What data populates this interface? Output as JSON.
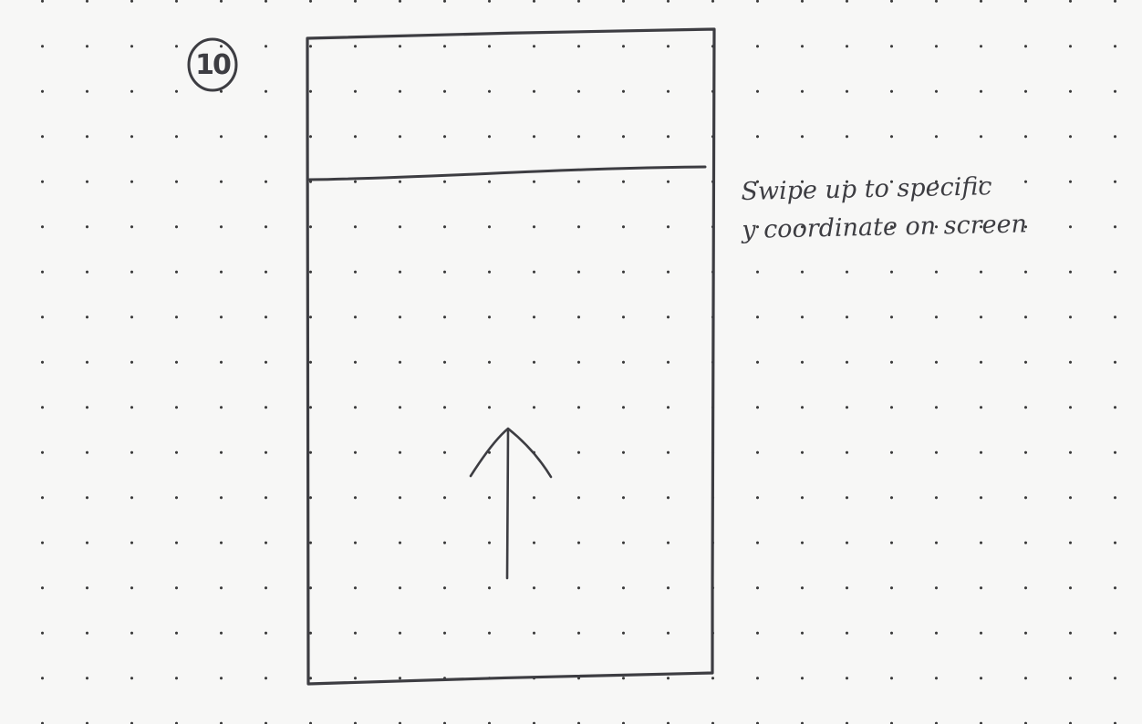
{
  "step_number": "10",
  "annotation": {
    "line1": "Swipe up to specific",
    "line2": "y coordinate on screen"
  },
  "icons": {
    "gesture": "swipe-up-arrow-icon"
  },
  "colors": {
    "paper": "#f7f7f6",
    "ink": "#3d3d42",
    "dot_grid": "#3a3a3a"
  }
}
